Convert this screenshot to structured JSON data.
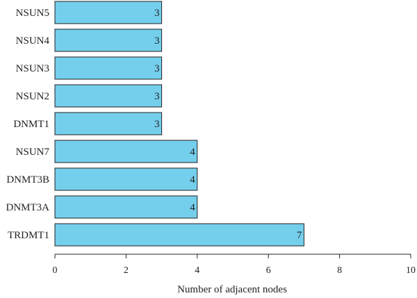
{
  "chart_data": {
    "type": "bar",
    "orientation": "horizontal",
    "categories": [
      "NSUN5",
      "NSUN4",
      "NSUN3",
      "NSUN2",
      "DNMT1",
      "NSUN7",
      "DNMT3B",
      "DNMT3A",
      "TRDMT1"
    ],
    "values": [
      3,
      3,
      3,
      3,
      3,
      4,
      4,
      4,
      7
    ],
    "data_labels": [
      "3",
      "3",
      "3",
      "3",
      "3",
      "4",
      "4",
      "4",
      "7"
    ],
    "xlabel": "Number of adjacent nodes",
    "ylabel": "",
    "xlim": [
      0,
      10
    ],
    "x_ticks": [
      0,
      2,
      4,
      6,
      8,
      10
    ],
    "x_tick_labels": [
      "0",
      "2",
      "4",
      "6",
      "8",
      "10"
    ],
    "grid": false,
    "legend": "none",
    "colors": {
      "bar_fill": "#74cfec",
      "bar_stroke": "#231f20",
      "axis": "#231f20",
      "text": "#231f20"
    }
  }
}
